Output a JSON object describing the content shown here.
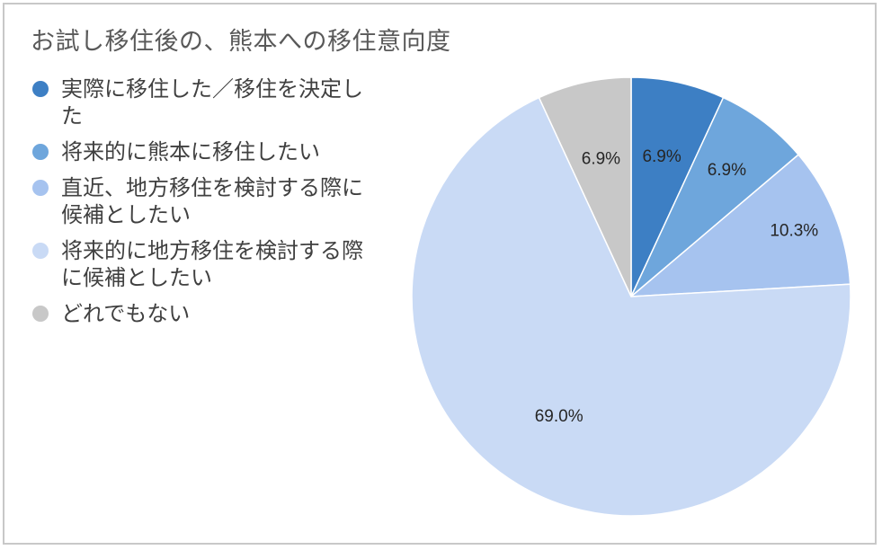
{
  "chart_data": {
    "type": "pie",
    "title": "お試し移住後の、熊本への移住意向度",
    "categories": [
      "実際に移住した／移住を決定した",
      "将来的に熊本に移住したい",
      "直近、地方移住を検討する際に候補としたい",
      "将来的に地方移住を検討する際に候補としたい",
      "どれでもない"
    ],
    "values": [
      6.9,
      6.9,
      10.3,
      69.0,
      6.9
    ],
    "data_labels": [
      "6.9%",
      "6.9%",
      "10.3%",
      "69.0%",
      "6.9%"
    ],
    "colors": [
      "#3d7fc4",
      "#6ea6dc",
      "#a6c3ef",
      "#c9daf5",
      "#c8c8c8"
    ],
    "legend_position": "left"
  }
}
